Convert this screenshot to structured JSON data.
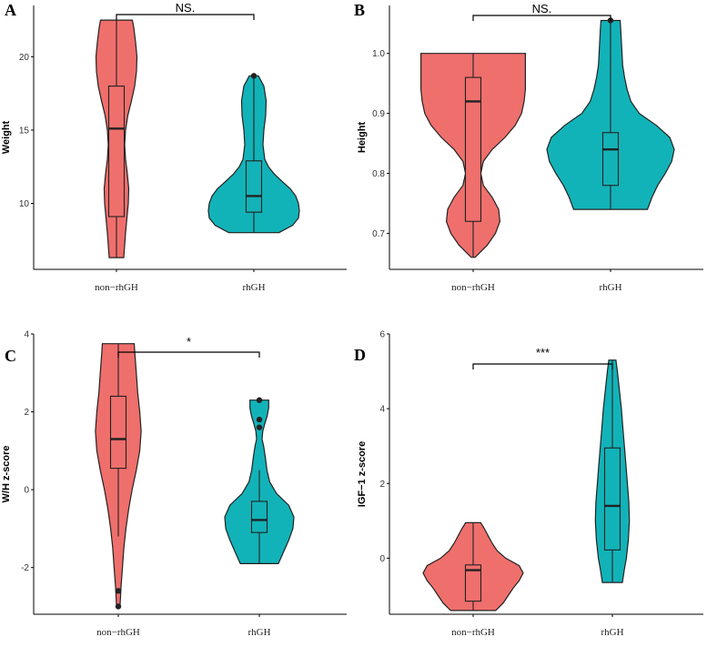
{
  "colors": {
    "non_rhGH": "#ef6f6c",
    "rhGH": "#12b3b8",
    "stroke": "#222222"
  },
  "chart_data": [
    {
      "panel": "A",
      "type": "violin",
      "ylabel": "Weight",
      "categories": [
        "non−rhGH",
        "rhGH"
      ],
      "ylim": [
        5.5,
        23.5
      ],
      "yticks": [
        10,
        15,
        20
      ],
      "significance": "NS.",
      "series": [
        {
          "category": "non−rhGH",
          "min": 6.3,
          "q1": 9.1,
          "median": 15.1,
          "q3": 18.0,
          "max": 22.5,
          "outliers": [],
          "density": [
            [
              6.3,
              0.16
            ],
            [
              8,
              0.2
            ],
            [
              10,
              0.26
            ],
            [
              11,
              0.27
            ],
            [
              12,
              0.24
            ],
            [
              13,
              0.2
            ],
            [
              14,
              0.18
            ],
            [
              15,
              0.2
            ],
            [
              16,
              0.25
            ],
            [
              17,
              0.33
            ],
            [
              18,
              0.4
            ],
            [
              19,
              0.44
            ],
            [
              20,
              0.45
            ],
            [
              21,
              0.42
            ],
            [
              22,
              0.38
            ],
            [
              22.5,
              0.35
            ]
          ]
        },
        {
          "category": "rhGH",
          "min": 8.0,
          "q1": 9.4,
          "median": 10.5,
          "q3": 12.9,
          "max": 18.7,
          "outliers": [
            18.7
          ],
          "density": [
            [
              8,
              0.55
            ],
            [
              8.5,
              0.85
            ],
            [
              9,
              0.98
            ],
            [
              9.5,
              1.0
            ],
            [
              10,
              0.98
            ],
            [
              10.5,
              0.92
            ],
            [
              11,
              0.8
            ],
            [
              11.5,
              0.62
            ],
            [
              12,
              0.45
            ],
            [
              12.5,
              0.32
            ],
            [
              13,
              0.24
            ],
            [
              14,
              0.2
            ],
            [
              15,
              0.22
            ],
            [
              16,
              0.26
            ],
            [
              17,
              0.27
            ],
            [
              18,
              0.22
            ],
            [
              18.7,
              0.1
            ]
          ]
        }
      ]
    },
    {
      "panel": "B",
      "type": "violin",
      "ylabel": "Height",
      "categories": [
        "non−rhGH",
        "rhGH"
      ],
      "ylim": [
        0.64,
        1.08
      ],
      "yticks": [
        "0.7",
        "0.8",
        "0.9",
        "1.0"
      ],
      "significance": "NS.",
      "series": [
        {
          "category": "non−rhGH",
          "min": 0.66,
          "q1": 0.72,
          "median": 0.92,
          "q3": 0.96,
          "max": 1.0,
          "outliers": [],
          "density": [
            [
              0.66,
              0.03
            ],
            [
              0.68,
              0.22
            ],
            [
              0.7,
              0.35
            ],
            [
              0.72,
              0.42
            ],
            [
              0.74,
              0.4
            ],
            [
              0.76,
              0.3
            ],
            [
              0.78,
              0.16
            ],
            [
              0.8,
              0.12
            ],
            [
              0.82,
              0.16
            ],
            [
              0.84,
              0.3
            ],
            [
              0.86,
              0.5
            ],
            [
              0.88,
              0.66
            ],
            [
              0.9,
              0.76
            ],
            [
              0.92,
              0.8
            ],
            [
              0.94,
              0.82
            ],
            [
              0.96,
              0.82
            ],
            [
              0.98,
              0.82
            ],
            [
              1.0,
              0.82
            ]
          ]
        },
        {
          "category": "rhGH",
          "min": 0.74,
          "q1": 0.78,
          "median": 0.84,
          "q3": 0.868,
          "max": 1.055,
          "outliers": [
            1.055
          ],
          "density": [
            [
              0.74,
              0.58
            ],
            [
              0.76,
              0.65
            ],
            [
              0.78,
              0.74
            ],
            [
              0.8,
              0.86
            ],
            [
              0.82,
              0.96
            ],
            [
              0.84,
              1.0
            ],
            [
              0.86,
              0.93
            ],
            [
              0.88,
              0.72
            ],
            [
              0.9,
              0.45
            ],
            [
              0.92,
              0.32
            ],
            [
              0.94,
              0.26
            ],
            [
              0.96,
              0.22
            ],
            [
              0.98,
              0.19
            ],
            [
              1.0,
              0.18
            ],
            [
              1.02,
              0.17
            ],
            [
              1.04,
              0.16
            ],
            [
              1.055,
              0.15
            ]
          ]
        }
      ]
    },
    {
      "panel": "C",
      "type": "violin",
      "ylabel": "W/H z-score",
      "categories": [
        "non−rhGH",
        "rhGH"
      ],
      "ylim": [
        -3.2,
        4.0
      ],
      "yticks": [
        -2,
        0,
        2,
        4
      ],
      "significance": "*",
      "series": [
        {
          "category": "non−rhGH",
          "min": -1.2,
          "q1": 0.55,
          "median": 1.3,
          "q3": 2.4,
          "max": 3.75,
          "outliers": [
            -2.6,
            -3.0
          ],
          "density": [
            [
              -3.0,
              0.05
            ],
            [
              -2.5,
              0.08
            ],
            [
              -2.0,
              0.12
            ],
            [
              -1.5,
              0.16
            ],
            [
              -1.0,
              0.22
            ],
            [
              -0.5,
              0.3
            ],
            [
              0,
              0.4
            ],
            [
              0.5,
              0.52
            ],
            [
              1.0,
              0.62
            ],
            [
              1.5,
              0.66
            ],
            [
              2.0,
              0.62
            ],
            [
              2.5,
              0.56
            ],
            [
              3.0,
              0.52
            ],
            [
              3.5,
              0.48
            ],
            [
              3.75,
              0.46
            ]
          ]
        },
        {
          "category": "rhGH",
          "min": -1.9,
          "q1": -1.1,
          "median": -0.78,
          "q3": -0.3,
          "max": 0.5,
          "outliers": [
            1.6,
            1.8,
            2.3
          ],
          "density": [
            [
              -1.9,
              0.55
            ],
            [
              -1.6,
              0.7
            ],
            [
              -1.3,
              0.85
            ],
            [
              -1.0,
              0.97
            ],
            [
              -0.7,
              1.0
            ],
            [
              -0.4,
              0.85
            ],
            [
              -0.1,
              0.5
            ],
            [
              0.2,
              0.3
            ],
            [
              0.5,
              0.22
            ],
            [
              0.8,
              0.18
            ],
            [
              1.1,
              0.13
            ],
            [
              1.3,
              0.08
            ],
            [
              1.5,
              0.1
            ],
            [
              1.7,
              0.16
            ],
            [
              1.9,
              0.23
            ],
            [
              2.1,
              0.27
            ],
            [
              2.3,
              0.27
            ]
          ]
        }
      ]
    },
    {
      "panel": "D",
      "type": "violin",
      "ylabel": "IGF−1 z-score",
      "categories": [
        "non−rhGH",
        "rhGH"
      ],
      "ylim": [
        -1.5,
        6.0
      ],
      "yticks": [
        0,
        2,
        4,
        6
      ],
      "significance": "***",
      "series": [
        {
          "category": "non−rhGH",
          "min": -1.4,
          "q1": -1.15,
          "median": -0.32,
          "q3": -0.18,
          "max": 0.95,
          "outliers": [],
          "density": [
            [
              -1.4,
              0.45
            ],
            [
              -1.2,
              0.6
            ],
            [
              -1.0,
              0.7
            ],
            [
              -0.8,
              0.8
            ],
            [
              -0.6,
              0.92
            ],
            [
              -0.4,
              1.0
            ],
            [
              -0.2,
              0.92
            ],
            [
              0,
              0.65
            ],
            [
              0.2,
              0.48
            ],
            [
              0.4,
              0.38
            ],
            [
              0.6,
              0.3
            ],
            [
              0.8,
              0.22
            ],
            [
              0.95,
              0.15
            ]
          ]
        },
        {
          "category": "rhGH",
          "min": -0.65,
          "q1": 0.22,
          "median": 1.4,
          "q3": 2.95,
          "max": 5.3,
          "outliers": [],
          "density": [
            [
              -0.65,
              0.2
            ],
            [
              -0.3,
              0.24
            ],
            [
              0,
              0.28
            ],
            [
              0.5,
              0.32
            ],
            [
              1.0,
              0.34
            ],
            [
              1.5,
              0.33
            ],
            [
              2.0,
              0.3
            ],
            [
              2.5,
              0.27
            ],
            [
              3.0,
              0.24
            ],
            [
              3.5,
              0.21
            ],
            [
              4.0,
              0.18
            ],
            [
              4.5,
              0.14
            ],
            [
              5.0,
              0.1
            ],
            [
              5.3,
              0.07
            ]
          ]
        }
      ]
    }
  ]
}
